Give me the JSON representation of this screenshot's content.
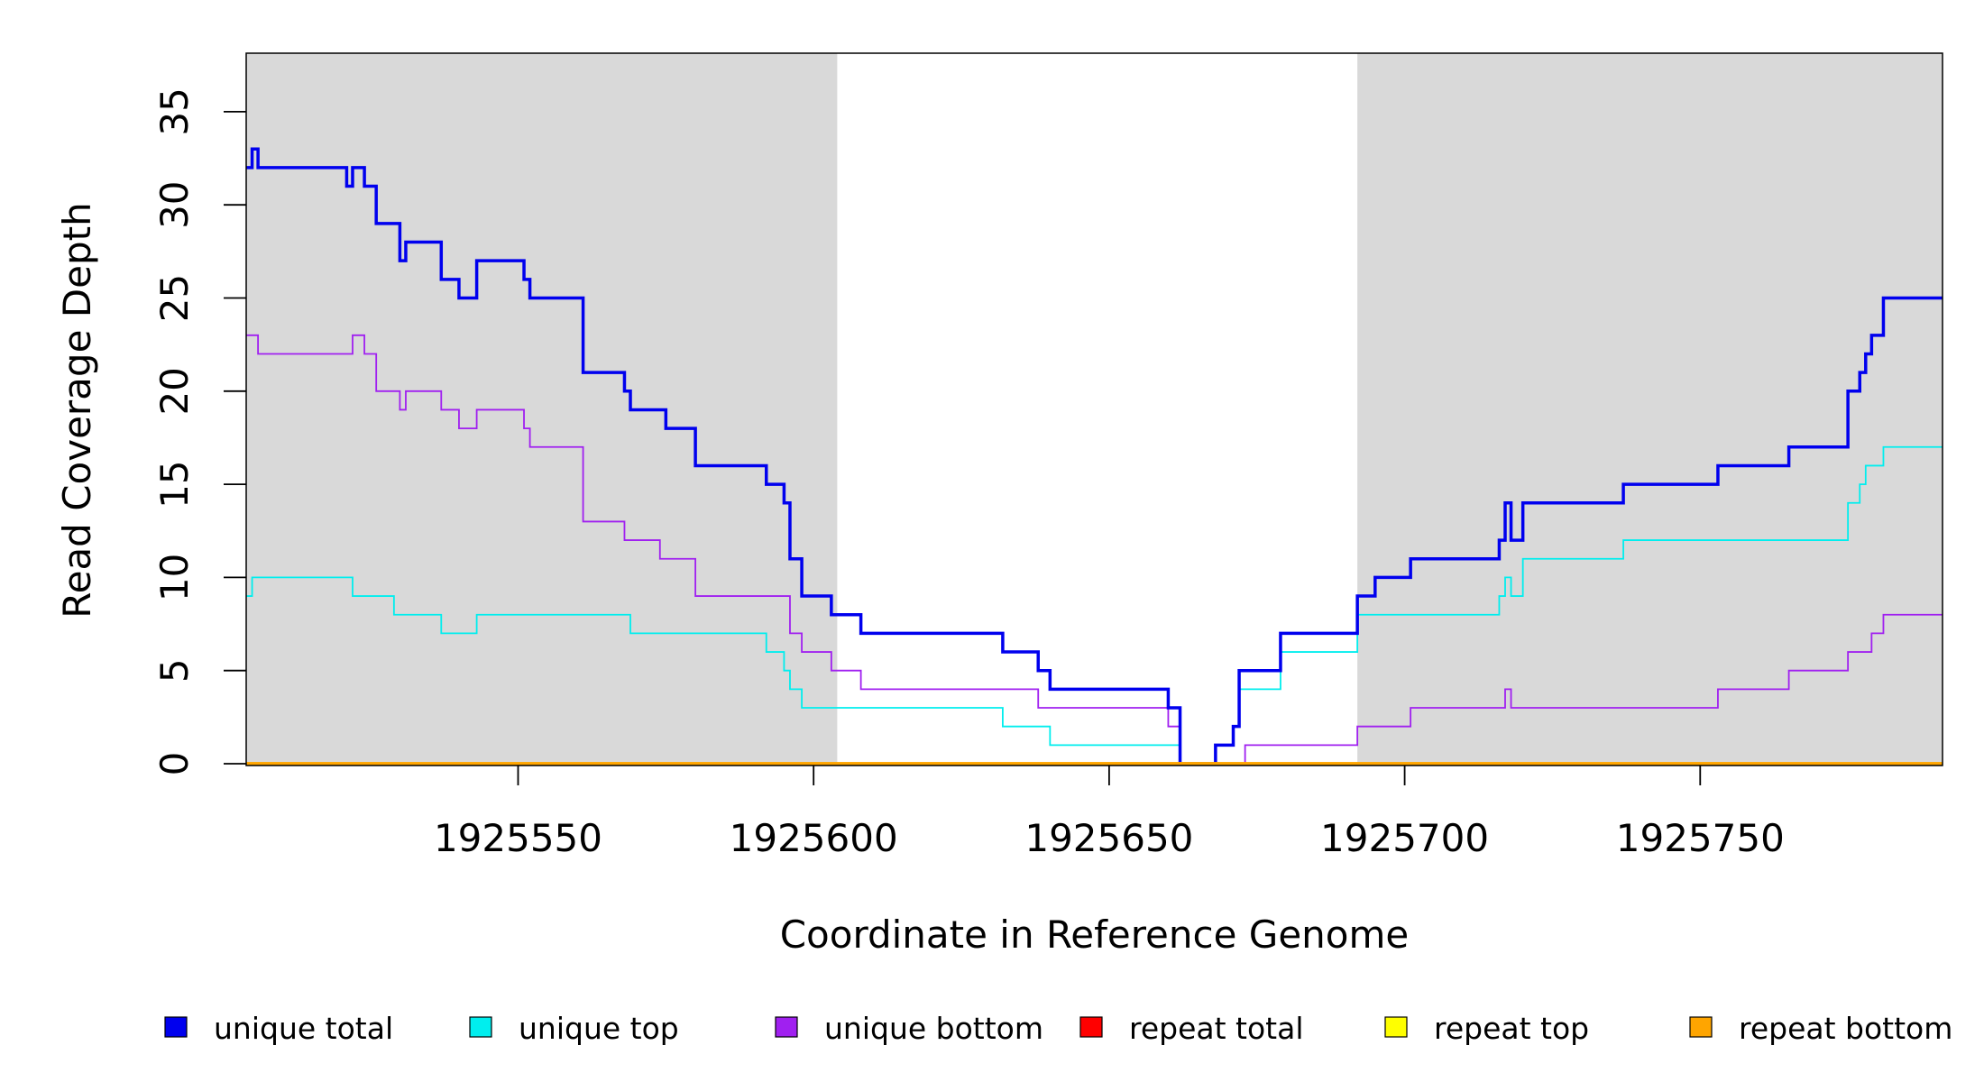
{
  "chart_data": {
    "type": "line",
    "xlabel": "Coordinate in Reference Genome",
    "ylabel": "Read Coverage Depth",
    "xlim": [
      1925504,
      1925791
    ],
    "ylim": [
      0,
      38
    ],
    "x_ticks": [
      1925550,
      1925600,
      1925650,
      1925700,
      1925750
    ],
    "y_ticks": [
      0,
      5,
      10,
      15,
      20,
      25,
      30,
      35
    ],
    "shaded_regions": [
      [
        1925504,
        1925604
      ],
      [
        1925692,
        1925791
      ]
    ],
    "shaded_color": "#d9d9d9",
    "grid": false,
    "legend_position": "bottom",
    "series": [
      {
        "name": "unique total",
        "color": "#0000ee",
        "x": [
          1925504,
          1925505,
          1925506,
          1925521,
          1925522,
          1925524,
          1925526,
          1925530,
          1925531,
          1925532,
          1925537,
          1925540,
          1925543,
          1925551,
          1925552,
          1925561,
          1925568,
          1925569,
          1925575,
          1925580,
          1925592,
          1925595,
          1925596,
          1925598,
          1925603,
          1925608,
          1925632,
          1925638,
          1925640,
          1925660,
          1925662,
          1925668,
          1925671,
          1925672,
          1925673,
          1925679,
          1925692,
          1925695,
          1925701,
          1925716,
          1925717,
          1925718,
          1925720,
          1925737,
          1925753,
          1925765,
          1925775,
          1925777,
          1925778,
          1925779,
          1925781,
          1925791
        ],
        "values": [
          32,
          33,
          32,
          31,
          32,
          31,
          29,
          27,
          28,
          28,
          26,
          25,
          27,
          26,
          25,
          21,
          20,
          19,
          18,
          16,
          15,
          14,
          11,
          9,
          8,
          7,
          6,
          5,
          4,
          3,
          0,
          1,
          2,
          5,
          5,
          7,
          9,
          10,
          11,
          12,
          14,
          12,
          14,
          15,
          16,
          17,
          20,
          21,
          22,
          23,
          25,
          25
        ]
      },
      {
        "name": "unique top",
        "color": "#00eeee",
        "x": [
          1925504,
          1925505,
          1925506,
          1925521,
          1925522,
          1925529,
          1925537,
          1925543,
          1925568,
          1925569,
          1925580,
          1925592,
          1925595,
          1925596,
          1925598,
          1925603,
          1925608,
          1925632,
          1925638,
          1925640,
          1925660,
          1925662,
          1925668,
          1925671,
          1925672,
          1925679,
          1925692,
          1925716,
          1925717,
          1925718,
          1925720,
          1925737,
          1925753,
          1925765,
          1925775,
          1925777,
          1925778,
          1925779,
          1925781,
          1925791
        ],
        "values": [
          9,
          10,
          10,
          10,
          9,
          8,
          7,
          8,
          8,
          7,
          7,
          6,
          5,
          4,
          3,
          3,
          3,
          2,
          2,
          1,
          1,
          0,
          1,
          2,
          4,
          6,
          8,
          9,
          10,
          9,
          11,
          12,
          12,
          12,
          14,
          15,
          16,
          16,
          17,
          17
        ]
      },
      {
        "name": "unique bottom",
        "color": "#a020f0",
        "x": [
          1925504,
          1925506,
          1925522,
          1925524,
          1925526,
          1925530,
          1925531,
          1925537,
          1925540,
          1925543,
          1925551,
          1925552,
          1925561,
          1925568,
          1925574,
          1925580,
          1925596,
          1925598,
          1925603,
          1925608,
          1925638,
          1925660,
          1925662,
          1925673,
          1925692,
          1925701,
          1925717,
          1925718,
          1925753,
          1925765,
          1925775,
          1925779,
          1925781,
          1925791
        ],
        "values": [
          23,
          22,
          23,
          22,
          20,
          19,
          20,
          19,
          18,
          19,
          18,
          17,
          13,
          12,
          11,
          9,
          7,
          6,
          5,
          4,
          3,
          2,
          0,
          1,
          2,
          3,
          4,
          3,
          4,
          5,
          6,
          7,
          8,
          8
        ]
      },
      {
        "name": "repeat total",
        "color": "#ff0000",
        "x": [
          1925504,
          1925791
        ],
        "values": [
          0,
          0
        ]
      },
      {
        "name": "repeat top",
        "color": "#ffff00",
        "x": [
          1925504,
          1925791
        ],
        "values": [
          0,
          0
        ]
      },
      {
        "name": "repeat bottom",
        "color": "#ffa500",
        "x": [
          1925504,
          1925791
        ],
        "values": [
          0,
          0
        ]
      }
    ]
  }
}
